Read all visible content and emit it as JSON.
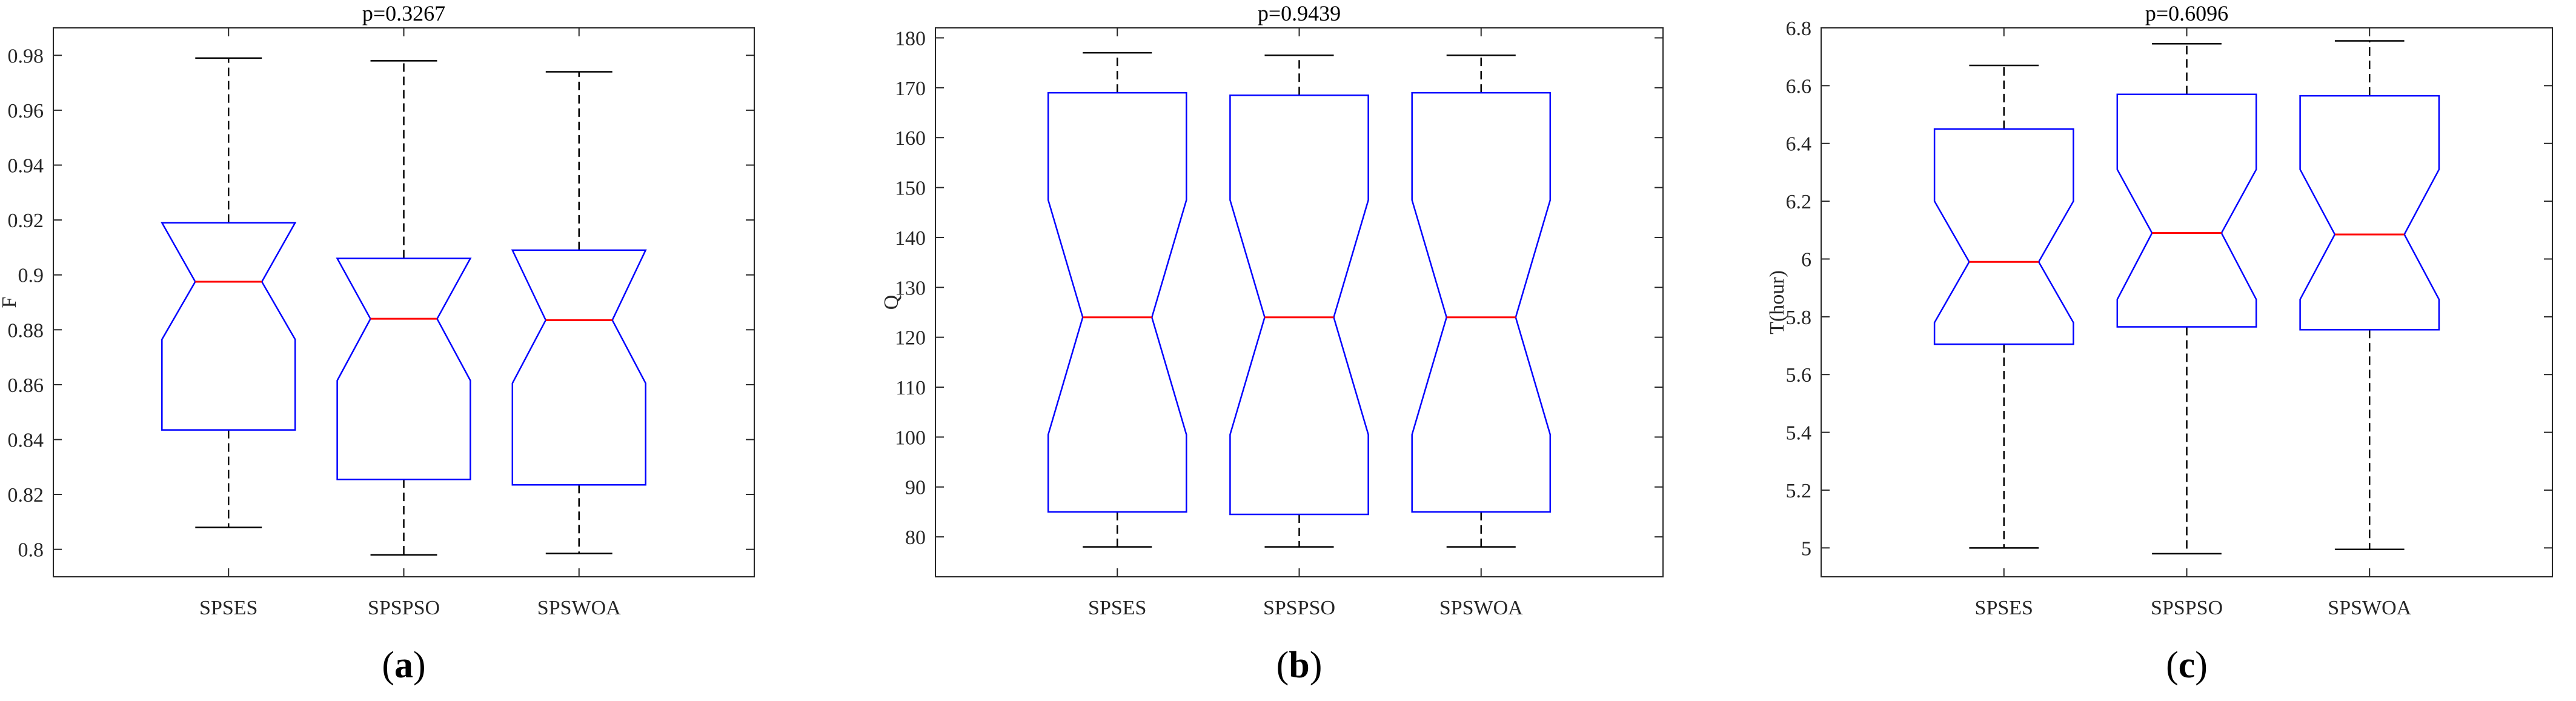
{
  "chart_data": [
    {
      "type": "boxplot",
      "title": "p=0.3267",
      "ylabel": "F",
      "xlabel": "",
      "categories": [
        "SPSES",
        "SPSPSO",
        "SPSWOA"
      ],
      "ylim": [
        0.79,
        0.99
      ],
      "yticks": [
        0.8,
        0.82,
        0.84,
        0.86,
        0.88,
        0.9,
        0.92,
        0.94,
        0.96,
        0.98
      ],
      "ytick_labels": [
        "0.8",
        "0.82",
        "0.84",
        "0.86",
        "0.88",
        "0.9",
        "0.92",
        "0.94",
        "0.96",
        "0.98"
      ],
      "boxes": [
        {
          "name": "SPSES",
          "whisker_low": 0.808,
          "q1": 0.8435,
          "notch_low": 0.8765,
          "median": 0.8975,
          "notch_high": 0.919,
          "q3": 0.919,
          "whisker_high": 0.979
        },
        {
          "name": "SPSPSO",
          "whisker_low": 0.798,
          "q1": 0.8255,
          "notch_low": 0.8615,
          "median": 0.884,
          "notch_high": 0.906,
          "q3": 0.906,
          "whisker_high": 0.978
        },
        {
          "name": "SPSWOA",
          "whisker_low": 0.7985,
          "q1": 0.8235,
          "notch_low": 0.8605,
          "median": 0.8835,
          "notch_high": 0.909,
          "q3": 0.909,
          "whisker_high": 0.974
        }
      ],
      "caption_letter": "a"
    },
    {
      "type": "boxplot",
      "title": "p=0.9439",
      "ylabel": "Q",
      "xlabel": "",
      "categories": [
        "SPSES",
        "SPSPSO",
        "SPSWOA"
      ],
      "ylim": [
        72,
        182
      ],
      "yticks": [
        80,
        90,
        100,
        110,
        120,
        130,
        140,
        150,
        160,
        170,
        180
      ],
      "ytick_labels": [
        "80",
        "90",
        "100",
        "110",
        "120",
        "130",
        "140",
        "150",
        "160",
        "170",
        "180"
      ],
      "boxes": [
        {
          "name": "SPSES",
          "whisker_low": 78,
          "q1": 85,
          "notch_low": 100.5,
          "median": 124,
          "notch_high": 147.5,
          "q3": 169,
          "whisker_high": 177
        },
        {
          "name": "SPSPSO",
          "whisker_low": 78,
          "q1": 84.5,
          "notch_low": 100.5,
          "median": 124,
          "notch_high": 147.5,
          "q3": 168.5,
          "whisker_high": 176.5
        },
        {
          "name": "SPSWOA",
          "whisker_low": 78,
          "q1": 85,
          "notch_low": 100.5,
          "median": 124,
          "notch_high": 147.5,
          "q3": 169,
          "whisker_high": 176.5
        }
      ],
      "caption_letter": "b"
    },
    {
      "type": "boxplot",
      "title": "p=0.6096",
      "ylabel": "T(hour)",
      "xlabel": "",
      "categories": [
        "SPSES",
        "SPSPSO",
        "SPSWOA"
      ],
      "ylim": [
        4.9,
        6.8
      ],
      "yticks": [
        5,
        5.2,
        5.4,
        5.6,
        5.8,
        6,
        6.2,
        6.4,
        6.6,
        6.8
      ],
      "ytick_labels": [
        "5",
        "5.2",
        "5.4",
        "5.6",
        "5.8",
        "6",
        "6.2",
        "6.4",
        "6.6",
        "6.8"
      ],
      "boxes": [
        {
          "name": "SPSES",
          "whisker_low": 5,
          "q1": 5.705,
          "notch_low": 5.78,
          "median": 5.99,
          "notch_high": 6.2,
          "q3": 6.45,
          "whisker_high": 6.67
        },
        {
          "name": "SPSPSO",
          "whisker_low": 4.98,
          "q1": 5.765,
          "notch_low": 5.86,
          "median": 6.09,
          "notch_high": 6.31,
          "q3": 6.57,
          "whisker_high": 6.745
        },
        {
          "name": "SPSWOA",
          "whisker_low": 4.995,
          "q1": 5.755,
          "notch_low": 5.86,
          "median": 6.085,
          "notch_high": 6.31,
          "q3": 6.565,
          "whisker_high": 6.755
        }
      ],
      "caption_letter": "c"
    }
  ],
  "colors": {
    "box": "#0000ff",
    "median": "#ff0000",
    "whisker": "#000000",
    "axis": "#262626",
    "background": "#ffffff"
  }
}
